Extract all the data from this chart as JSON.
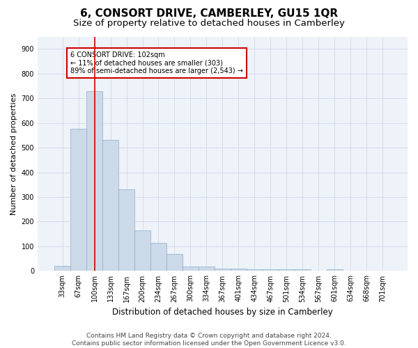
{
  "title": "6, CONSORT DRIVE, CAMBERLEY, GU15 1QR",
  "subtitle": "Size of property relative to detached houses in Camberley",
  "xlabel": "Distribution of detached houses by size in Camberley",
  "ylabel": "Number of detached properties",
  "categories": [
    "33sqm",
    "67sqm",
    "100sqm",
    "133sqm",
    "167sqm",
    "200sqm",
    "234sqm",
    "267sqm",
    "300sqm",
    "334sqm",
    "367sqm",
    "401sqm",
    "434sqm",
    "467sqm",
    "501sqm",
    "534sqm",
    "567sqm",
    "601sqm",
    "634sqm",
    "668sqm",
    "701sqm"
  ],
  "values": [
    20,
    575,
    730,
    530,
    330,
    165,
    115,
    68,
    18,
    18,
    10,
    10,
    7,
    7,
    6,
    6,
    0,
    6,
    0,
    0,
    0
  ],
  "bar_color": "#ccd9e8",
  "bar_edge_color": "#8aafc8",
  "bar_width": 1.0,
  "vline_x": 2,
  "vline_color": "#cc0000",
  "annotation_text": "6 CONSORT DRIVE: 102sqm\n← 11% of detached houses are smaller (303)\n89% of semi-detached houses are larger (2,543) →",
  "annotation_box_color": "white",
  "annotation_box_edge": "#cc0000",
  "ylim": [
    0,
    950
  ],
  "yticks": [
    0,
    100,
    200,
    300,
    400,
    500,
    600,
    700,
    800,
    900
  ],
  "grid_color": "#d0d8ec",
  "bg_color": "#eef2f9",
  "footer": "Contains HM Land Registry data © Crown copyright and database right 2024.\nContains public sector information licensed under the Open Government Licence v3.0.",
  "title_fontsize": 11,
  "subtitle_fontsize": 9.5,
  "xlabel_fontsize": 8.5,
  "ylabel_fontsize": 8,
  "tick_fontsize": 7,
  "annotation_fontsize": 7,
  "footer_fontsize": 6.5
}
